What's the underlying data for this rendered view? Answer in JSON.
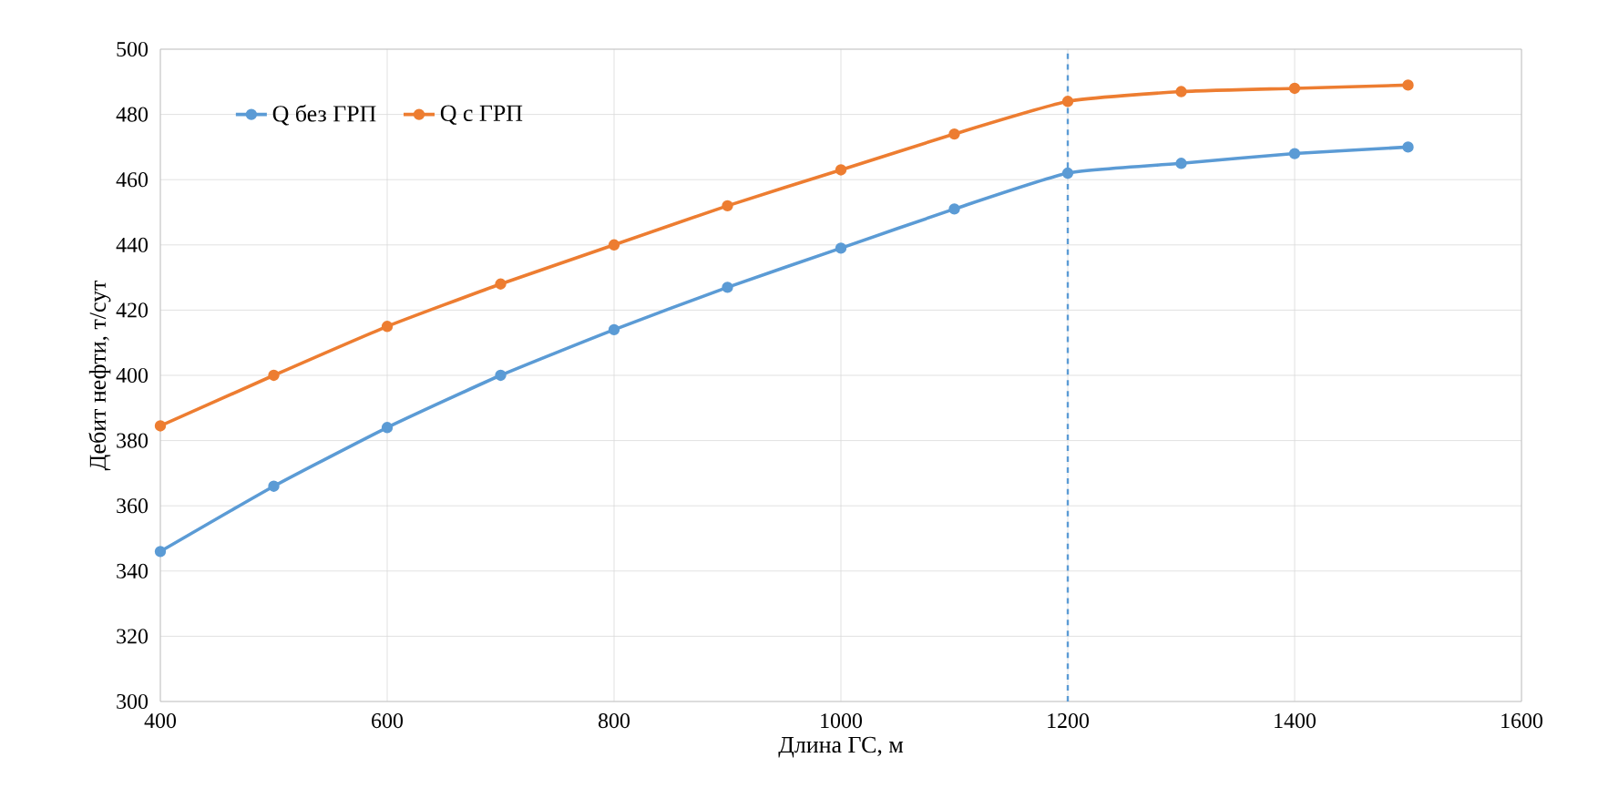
{
  "chart_data": {
    "type": "line",
    "xlabel": "Длина ГС, м",
    "ylabel": "Дебит нефти, т/сут",
    "x": [
      400,
      500,
      600,
      700,
      800,
      900,
      1000,
      1100,
      1200,
      1300,
      1400,
      1500
    ],
    "series": [
      {
        "name": "Q  без ГРП",
        "color": "#5b9bd5",
        "values": [
          346,
          366,
          384,
          400,
          414,
          427,
          439,
          451,
          462,
          465,
          468,
          470
        ]
      },
      {
        "name": "Q  с ГРП",
        "color": "#ed7d31",
        "values": [
          384.5,
          400,
          415,
          428,
          440,
          452,
          463,
          474,
          484,
          487,
          488,
          489
        ]
      }
    ],
    "xlim": [
      400,
      1600
    ],
    "xticks": [
      400,
      600,
      800,
      1000,
      1200,
      1400,
      1600
    ],
    "ylim": [
      300,
      500
    ],
    "yticks": [
      300,
      320,
      340,
      360,
      380,
      400,
      420,
      440,
      460,
      480,
      500
    ],
    "ref_lines": [
      {
        "axis": "x",
        "value": 1200,
        "color": "#5b9bd5",
        "line_style": "dashed"
      }
    ],
    "grid": true,
    "legend": "top left",
    "marker": "circle",
    "line_style": "solid"
  }
}
